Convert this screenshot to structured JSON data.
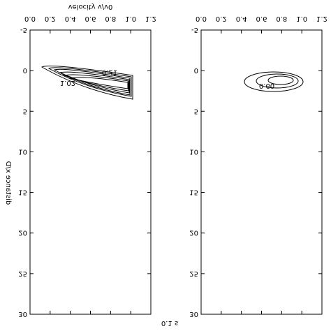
{
  "chart_data": [
    {
      "type": "contour",
      "x_label": "velocity v/v0",
      "y_label": "distance x/D",
      "footer": "0.1 s",
      "xlim": [
        0,
        1.2
      ],
      "ylim": [
        -5,
        30
      ],
      "xticks": [
        {
          "value": 0,
          "label": "0.0"
        },
        0.2,
        0.4,
        0.6,
        0.8,
        {
          "value": 1,
          "label": "1.0"
        },
        1.2
      ],
      "yticks": [
        -5,
        0,
        5,
        10,
        15,
        20,
        25,
        30
      ],
      "annotations": [
        "0.21",
        "1.02"
      ]
    },
    {
      "type": "contour",
      "xlim": [
        0,
        1.2
      ],
      "ylim": [
        -5,
        30
      ],
      "xticks": [
        {
          "value": 0,
          "label": "0.0"
        },
        0.2,
        0.4,
        0.6,
        0.8,
        {
          "value": 1,
          "label": "1.0"
        },
        1.2
      ],
      "yticks": [
        -5,
        0,
        5,
        10,
        15,
        20,
        25,
        30
      ],
      "annotations": [
        "0.60"
      ]
    }
  ]
}
